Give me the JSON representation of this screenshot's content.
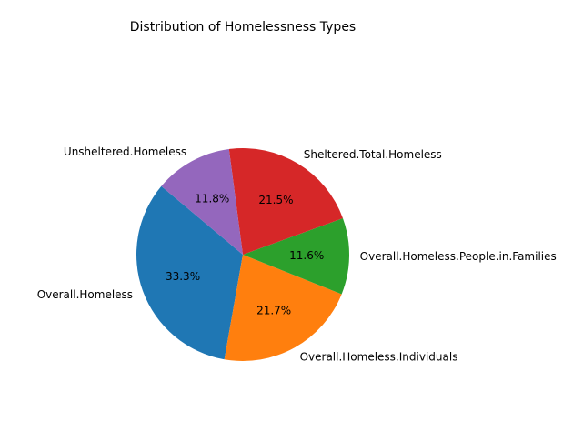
{
  "chart_data": {
    "type": "pie",
    "title": "Distribution of Homelessness Types",
    "slices": [
      {
        "label": "Overall.Homeless",
        "value": 33.3,
        "pct_label": "33.3%",
        "color": "#1f77b4"
      },
      {
        "label": "Overall.Homeless.Individuals",
        "value": 21.7,
        "pct_label": "21.7%",
        "color": "#ff7f0e"
      },
      {
        "label": "Overall.Homeless.People.in.Families",
        "value": 11.6,
        "pct_label": "11.6%",
        "color": "#2ca02c"
      },
      {
        "label": "Sheltered.Total.Homeless",
        "value": 21.5,
        "pct_label": "21.5%",
        "color": "#d62728"
      },
      {
        "label": "Unsheltered.Homeless",
        "value": 11.8,
        "pct_label": "11.8%",
        "color": "#9467bd"
      }
    ],
    "start_angle_deg": 140,
    "direction": "counterclockwise"
  }
}
